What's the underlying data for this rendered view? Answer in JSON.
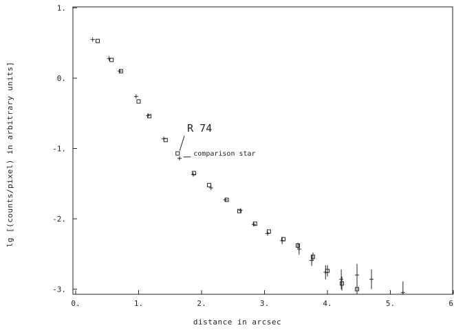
{
  "chart_data": {
    "type": "scatter",
    "xlabel": "distance in arcsec",
    "ylabel": "lg [(counts/pixel) in arbitrary units]",
    "xlim": [
      0,
      6
    ],
    "ylim": [
      -3.05,
      1.05
    ],
    "xticks": [
      0,
      1,
      2,
      3,
      4,
      5,
      6
    ],
    "xtick_labels": [
      "0.",
      "1.",
      "2.",
      "3.",
      "4.",
      "5.",
      "6."
    ],
    "yticks": [
      1,
      0,
      -1,
      -2,
      -3
    ],
    "ytick_labels": [
      "1.",
      "0.",
      "-1.",
      "-2.",
      "-3."
    ],
    "grid": false,
    "annotations": [
      {
        "text": "R 74",
        "x": 1.62,
        "y": -1.06,
        "label_x": 1.75,
        "label_y": -0.76
      },
      {
        "text": "comparison star",
        "x": 1.68,
        "y": -1.15,
        "label_x": 1.85,
        "label_y": -1.1
      }
    ],
    "series": [
      {
        "marker": "square",
        "x": [
          0.35,
          0.57,
          0.72,
          1.0,
          1.17,
          1.43,
          1.62,
          1.88,
          2.12,
          2.4,
          2.6,
          2.85,
          3.07,
          3.3,
          3.53,
          3.77,
          4.0,
          4.23,
          4.47
        ],
        "y": [
          0.53,
          0.26,
          0.1,
          -0.33,
          -0.54,
          -0.88,
          -1.07,
          -1.35,
          -1.52,
          -1.73,
          -1.89,
          -2.07,
          -2.18,
          -2.29,
          -2.38,
          -2.54,
          -2.74,
          -2.92,
          -3.0
        ],
        "yerr": [
          0,
          0,
          0,
          0,
          0,
          0,
          0,
          0,
          0,
          0,
          0,
          0,
          0,
          0,
          0.04,
          0.06,
          0.08,
          0.1,
          0.08
        ]
      },
      {
        "marker": "plus",
        "x": [
          0.27,
          0.53,
          0.7,
          0.96,
          1.15,
          1.4,
          1.65,
          1.87,
          2.15,
          2.38,
          2.62,
          2.83,
          3.05,
          3.28,
          3.55,
          3.75,
          3.97,
          4.22,
          4.47,
          4.7,
          5.2
        ],
        "y": [
          0.55,
          0.28,
          0.1,
          -0.26,
          -0.53,
          -0.86,
          -1.14,
          -1.37,
          -1.56,
          -1.73,
          -1.88,
          -2.08,
          -2.21,
          -2.31,
          -2.43,
          -2.59,
          -2.76,
          -2.86,
          -2.8,
          -2.86,
          -3.05
        ],
        "yerr": [
          0,
          0,
          0,
          0,
          0,
          0,
          0,
          0,
          0,
          0,
          0,
          0,
          0.03,
          0.05,
          0.08,
          0.08,
          0.1,
          0.14,
          0.16,
          0.14,
          0.16
        ]
      }
    ]
  }
}
